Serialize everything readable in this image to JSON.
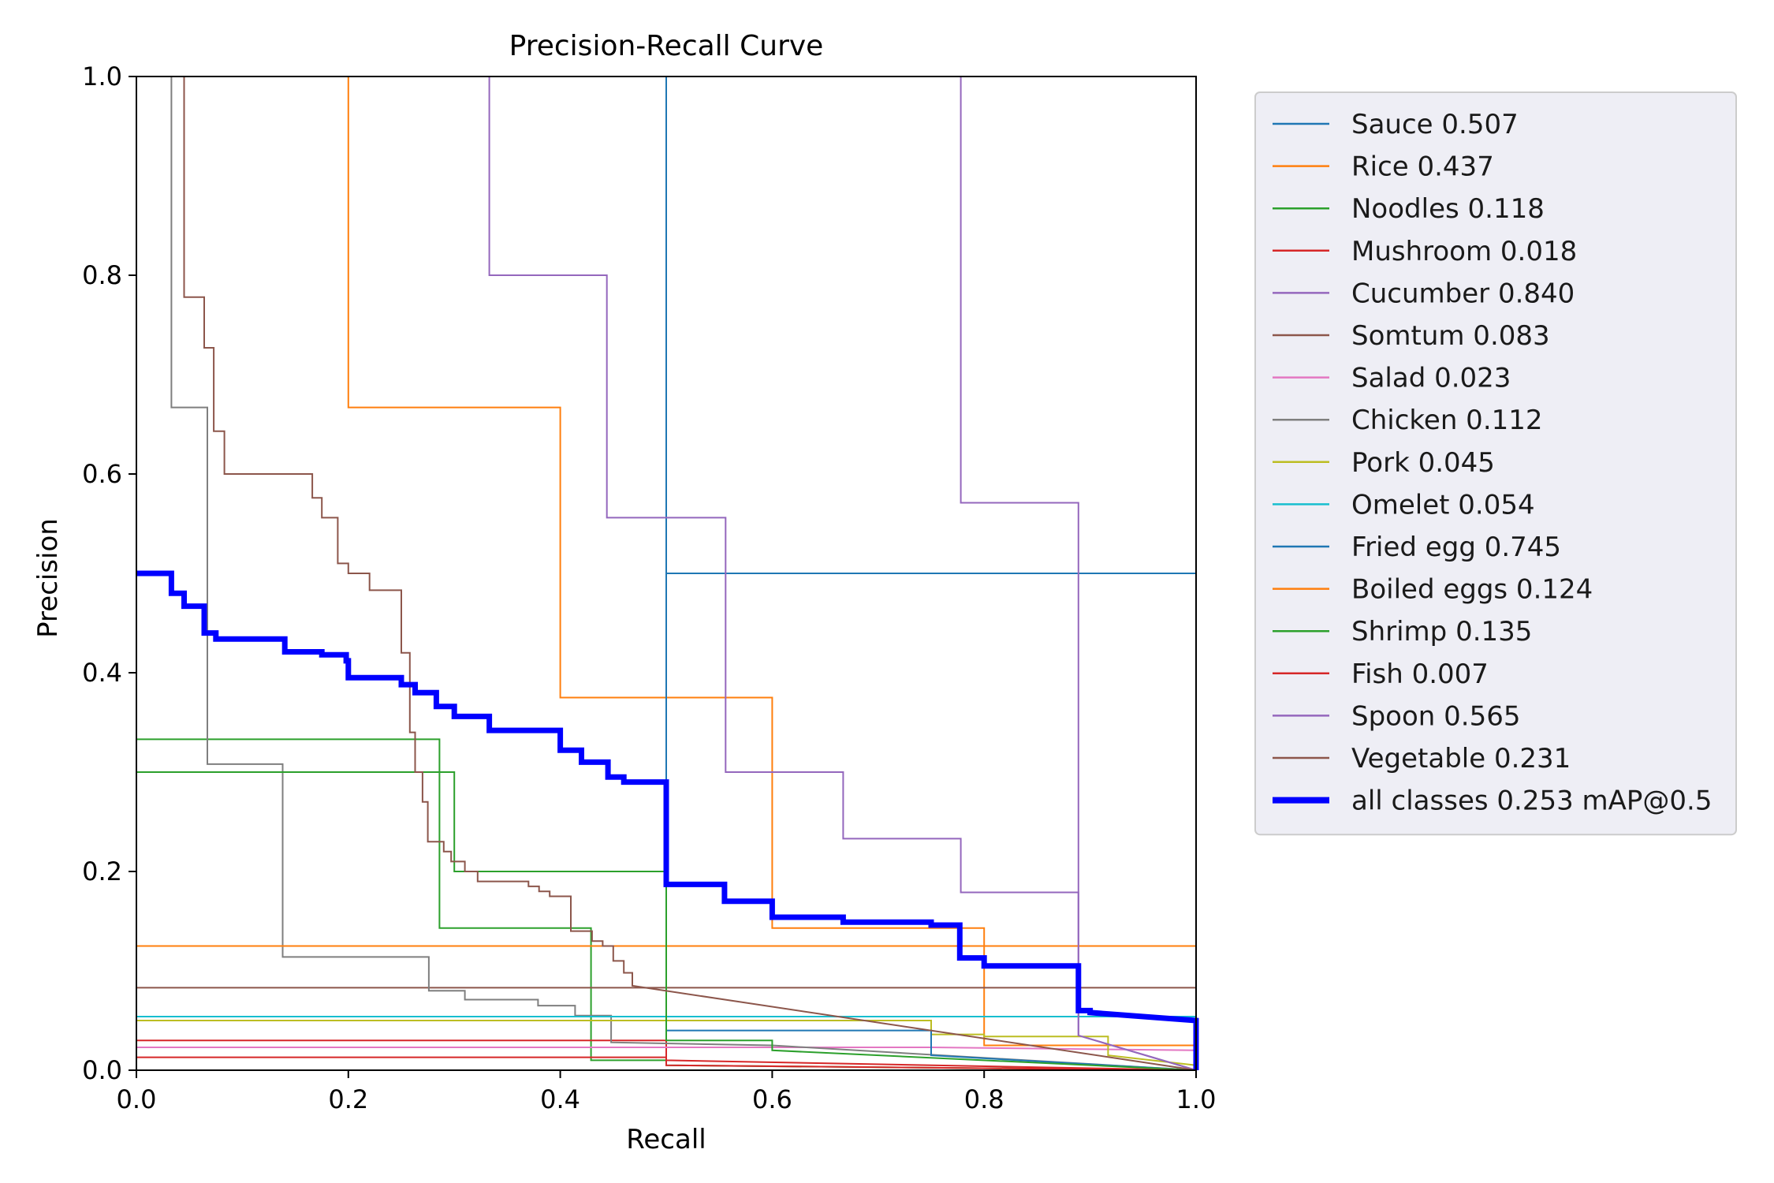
{
  "chart_data": {
    "type": "line",
    "title": "Precision-Recall Curve",
    "xlabel": "Recall",
    "ylabel": "Precision",
    "xlim": [
      0,
      1
    ],
    "ylim": [
      0,
      1
    ],
    "xticks": [
      "0.0",
      "0.2",
      "0.4",
      "0.6",
      "0.8",
      "1.0"
    ],
    "yticks": [
      "0.0",
      "0.2",
      "0.4",
      "0.6",
      "0.8",
      "1.0"
    ],
    "grid": false,
    "legend_position": "outside-right",
    "series": [
      {
        "name": "Sauce 0.507",
        "color": "#1f77b4",
        "width": 2,
        "points": [
          [
            0.5,
            1
          ],
          [
            0.5,
            0.5
          ],
          [
            1,
            0.5
          ],
          [
            1,
            0
          ]
        ]
      },
      {
        "name": "Rice 0.437",
        "color": "#ff7f0e",
        "width": 2,
        "points": [
          [
            0.2,
            1
          ],
          [
            0.2,
            0.667
          ],
          [
            0.4,
            0.667
          ],
          [
            0.4,
            0.375
          ],
          [
            0.6,
            0.375
          ],
          [
            0.6,
            0.143
          ],
          [
            0.8,
            0.143
          ],
          [
            0.8,
            0.025
          ],
          [
            1,
            0.025
          ],
          [
            1,
            0
          ]
        ]
      },
      {
        "name": "Noodles 0.118",
        "color": "#2ca02c",
        "width": 2,
        "points": [
          [
            0,
            0.333
          ],
          [
            0.286,
            0.333
          ],
          [
            0.286,
            0.143
          ],
          [
            0.429,
            0.143
          ],
          [
            0.429,
            0.01
          ],
          [
            0.5,
            0.01
          ],
          [
            0.5,
            0.005
          ],
          [
            1,
            0
          ]
        ]
      },
      {
        "name": "Mushroom 0.018",
        "color": "#d62728",
        "width": 2,
        "points": [
          [
            0,
            0.03
          ],
          [
            0.5,
            0.03
          ],
          [
            0.5,
            0.01
          ],
          [
            1,
            0
          ]
        ]
      },
      {
        "name": "Cucumber 0.840",
        "color": "#9467bd",
        "width": 2,
        "points": [
          [
            0.778,
            1
          ],
          [
            0.778,
            0.571
          ],
          [
            0.889,
            0.571
          ],
          [
            0.889,
            0.035
          ],
          [
            1,
            0
          ]
        ]
      },
      {
        "name": "Somtum 0.083",
        "color": "#8c564b",
        "width": 2,
        "points": [
          [
            0,
            0.083
          ],
          [
            1,
            0.083
          ]
        ]
      },
      {
        "name": "Salad 0.023",
        "color": "#e377c2",
        "width": 2,
        "points": [
          [
            0,
            0.023
          ],
          [
            0.75,
            0.023
          ],
          [
            1,
            0.02
          ],
          [
            1,
            0
          ]
        ]
      },
      {
        "name": "Chicken 0.112",
        "color": "#7f7f7f",
        "width": 2,
        "points": [
          [
            0.033,
            1
          ],
          [
            0.033,
            0.667
          ],
          [
            0.067,
            0.667
          ],
          [
            0.067,
            0.308
          ],
          [
            0.138,
            0.308
          ],
          [
            0.138,
            0.114
          ],
          [
            0.276,
            0.114
          ],
          [
            0.276,
            0.08
          ],
          [
            0.31,
            0.08
          ],
          [
            0.31,
            0.071
          ],
          [
            0.379,
            0.071
          ],
          [
            0.379,
            0.065
          ],
          [
            0.414,
            0.065
          ],
          [
            0.414,
            0.055
          ],
          [
            0.448,
            0.055
          ],
          [
            0.448,
            0.028
          ],
          [
            0.6,
            0.025
          ],
          [
            1,
            0
          ]
        ]
      },
      {
        "name": "Pork 0.045",
        "color": "#bcbd22",
        "width": 2,
        "points": [
          [
            0,
            0.05
          ],
          [
            0.75,
            0.05
          ],
          [
            0.75,
            0.036
          ],
          [
            0.8,
            0.036
          ],
          [
            0.8,
            0.034
          ],
          [
            0.917,
            0.034
          ],
          [
            0.917,
            0.015
          ],
          [
            1,
            0.005
          ]
        ]
      },
      {
        "name": "Omelet 0.054",
        "color": "#17becf",
        "width": 2,
        "points": [
          [
            0,
            0.054
          ],
          [
            0.889,
            0.054
          ],
          [
            1,
            0.054
          ],
          [
            1,
            0
          ]
        ]
      },
      {
        "name": "Fried egg 0.745",
        "color": "#1f77b4",
        "width": 2,
        "points": [
          [
            0.5,
            1
          ],
          [
            0.5,
            0.04
          ],
          [
            0.75,
            0.04
          ],
          [
            0.75,
            0.015
          ],
          [
            1,
            0
          ]
        ]
      },
      {
        "name": "Boiled eggs 0.124",
        "color": "#ff7f0e",
        "width": 2,
        "points": [
          [
            0,
            0.125
          ],
          [
            1,
            0.125
          ],
          [
            1,
            0
          ]
        ]
      },
      {
        "name": "Shrimp 0.135",
        "color": "#2ca02c",
        "width": 2,
        "points": [
          [
            0,
            0.3
          ],
          [
            0.3,
            0.3
          ],
          [
            0.3,
            0.2
          ],
          [
            0.5,
            0.2
          ],
          [
            0.5,
            0.03
          ],
          [
            0.6,
            0.03
          ],
          [
            0.6,
            0.02
          ],
          [
            1,
            0
          ]
        ]
      },
      {
        "name": "Fish 0.007",
        "color": "#d62728",
        "width": 2,
        "points": [
          [
            0,
            0.013
          ],
          [
            0.5,
            0.013
          ],
          [
            0.5,
            0.005
          ],
          [
            1,
            0
          ]
        ]
      },
      {
        "name": "Spoon 0.565",
        "color": "#9467bd",
        "width": 2,
        "points": [
          [
            0.333,
            1
          ],
          [
            0.333,
            0.8
          ],
          [
            0.444,
            0.8
          ],
          [
            0.444,
            0.556
          ],
          [
            0.556,
            0.556
          ],
          [
            0.556,
            0.3
          ],
          [
            0.667,
            0.3
          ],
          [
            0.667,
            0.233
          ],
          [
            0.778,
            0.233
          ],
          [
            0.778,
            0.179
          ],
          [
            0.889,
            0.179
          ],
          [
            0.889,
            0.035
          ],
          [
            1,
            0
          ]
        ]
      },
      {
        "name": "Vegetable 0.231",
        "color": "#8c564b",
        "width": 2,
        "points": [
          [
            0.045,
            1
          ],
          [
            0.045,
            0.778
          ],
          [
            0.064,
            0.778
          ],
          [
            0.064,
            0.727
          ],
          [
            0.073,
            0.727
          ],
          [
            0.073,
            0.643
          ],
          [
            0.083,
            0.643
          ],
          [
            0.083,
            0.6
          ],
          [
            0.166,
            0.6
          ],
          [
            0.166,
            0.576
          ],
          [
            0.175,
            0.576
          ],
          [
            0.175,
            0.556
          ],
          [
            0.19,
            0.556
          ],
          [
            0.19,
            0.51
          ],
          [
            0.2,
            0.51
          ],
          [
            0.2,
            0.5
          ],
          [
            0.22,
            0.5
          ],
          [
            0.22,
            0.483
          ],
          [
            0.25,
            0.483
          ],
          [
            0.25,
            0.42
          ],
          [
            0.258,
            0.42
          ],
          [
            0.258,
            0.34
          ],
          [
            0.263,
            0.34
          ],
          [
            0.263,
            0.3
          ],
          [
            0.27,
            0.3
          ],
          [
            0.27,
            0.27
          ],
          [
            0.275,
            0.27
          ],
          [
            0.275,
            0.23
          ],
          [
            0.29,
            0.23
          ],
          [
            0.29,
            0.22
          ],
          [
            0.297,
            0.22
          ],
          [
            0.297,
            0.21
          ],
          [
            0.31,
            0.21
          ],
          [
            0.31,
            0.2
          ],
          [
            0.322,
            0.2
          ],
          [
            0.322,
            0.19
          ],
          [
            0.37,
            0.19
          ],
          [
            0.37,
            0.185
          ],
          [
            0.38,
            0.185
          ],
          [
            0.38,
            0.18
          ],
          [
            0.39,
            0.18
          ],
          [
            0.39,
            0.175
          ],
          [
            0.41,
            0.175
          ],
          [
            0.41,
            0.14
          ],
          [
            0.43,
            0.14
          ],
          [
            0.43,
            0.13
          ],
          [
            0.44,
            0.13
          ],
          [
            0.44,
            0.125
          ],
          [
            0.45,
            0.125
          ],
          [
            0.45,
            0.11
          ],
          [
            0.46,
            0.11
          ],
          [
            0.46,
            0.098
          ],
          [
            0.468,
            0.098
          ],
          [
            0.468,
            0.085
          ],
          [
            1,
            0
          ]
        ]
      },
      {
        "name": "all classes 0.253 mAP@0.5",
        "color": "#0000ff",
        "width": 7,
        "points": [
          [
            0,
            0.5
          ],
          [
            0.033,
            0.5
          ],
          [
            0.033,
            0.48
          ],
          [
            0.045,
            0.48
          ],
          [
            0.045,
            0.467
          ],
          [
            0.064,
            0.467
          ],
          [
            0.064,
            0.44
          ],
          [
            0.075,
            0.44
          ],
          [
            0.075,
            0.434
          ],
          [
            0.14,
            0.434
          ],
          [
            0.14,
            0.421
          ],
          [
            0.175,
            0.421
          ],
          [
            0.175,
            0.418
          ],
          [
            0.198,
            0.418
          ],
          [
            0.198,
            0.412
          ],
          [
            0.2,
            0.412
          ],
          [
            0.2,
            0.395
          ],
          [
            0.25,
            0.395
          ],
          [
            0.25,
            0.388
          ],
          [
            0.263,
            0.388
          ],
          [
            0.263,
            0.38
          ],
          [
            0.283,
            0.38
          ],
          [
            0.283,
            0.366
          ],
          [
            0.3,
            0.366
          ],
          [
            0.3,
            0.356
          ],
          [
            0.333,
            0.356
          ],
          [
            0.333,
            0.342
          ],
          [
            0.4,
            0.342
          ],
          [
            0.4,
            0.322
          ],
          [
            0.42,
            0.322
          ],
          [
            0.42,
            0.31
          ],
          [
            0.445,
            0.31
          ],
          [
            0.445,
            0.295
          ],
          [
            0.46,
            0.295
          ],
          [
            0.46,
            0.29
          ],
          [
            0.5,
            0.29
          ],
          [
            0.5,
            0.187
          ],
          [
            0.555,
            0.187
          ],
          [
            0.555,
            0.17
          ],
          [
            0.6,
            0.17
          ],
          [
            0.6,
            0.154
          ],
          [
            0.667,
            0.154
          ],
          [
            0.667,
            0.149
          ],
          [
            0.75,
            0.149
          ],
          [
            0.75,
            0.146
          ],
          [
            0.777,
            0.146
          ],
          [
            0.777,
            0.113
          ],
          [
            0.8,
            0.113
          ],
          [
            0.8,
            0.105
          ],
          [
            0.889,
            0.105
          ],
          [
            0.889,
            0.06
          ],
          [
            0.9,
            0.06
          ],
          [
            0.9,
            0.058
          ],
          [
            1,
            0.05
          ],
          [
            1,
            0
          ]
        ]
      }
    ]
  }
}
